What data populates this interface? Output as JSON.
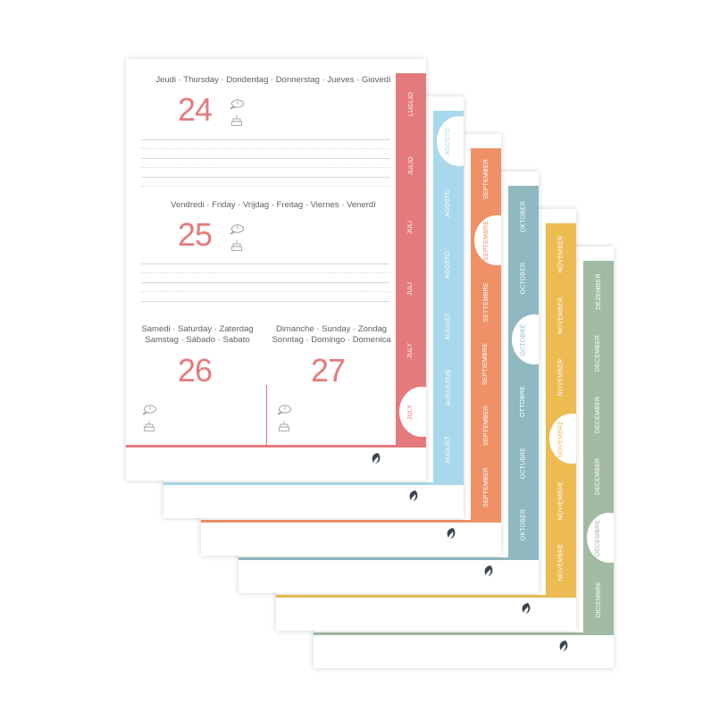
{
  "pages": [
    {
      "month": "July",
      "color": "#e57a7c",
      "highlight": 5,
      "labels": [
        "LUGLIO",
        "JULIO",
        "JULI",
        "JULI",
        "JULY",
        "JULY"
      ]
    },
    {
      "month": "August",
      "color": "#a8d8ec",
      "highlight": 0,
      "labels": [
        "AGOSTO",
        "AGOSTO",
        "AGOSTO",
        "AUGUST",
        "AUGUSTUS",
        "AUGUST"
      ]
    },
    {
      "month": "September",
      "color": "#ef9066",
      "highlight": 1,
      "labels": [
        "SEPTEMBER",
        "SEPTEMBRE",
        "SETTEMBRE",
        "SEPTIEMBRE",
        "SEPTEMBER",
        "SEPTEMBER"
      ]
    },
    {
      "month": "October",
      "color": "#8fb8c0",
      "highlight": 2,
      "labels": [
        "OKTOBER",
        "OCTOBER",
        "OCTOBRE",
        "OTTOBRE",
        "OCTUBRE",
        "OKTOBER"
      ]
    },
    {
      "month": "November",
      "color": "#ecbb52",
      "highlight": 3,
      "labels": [
        "NOVEMBER",
        "NOVEMBER",
        "NOVEMBER",
        "NOVEMBRE",
        "NOVIEMBRE",
        "NOVEMBRE"
      ]
    },
    {
      "month": "December",
      "color": "#a2b9a2",
      "highlight": 4,
      "labels": [
        "DEZEMBER",
        "DECEMBER",
        "DECEMBER",
        "DECEMBER",
        "DÉCEMBRE",
        "DICIEMBRE"
      ]
    }
  ],
  "top_page": {
    "days": [
      {
        "header": "Jeudi · Thursday · Donderdag · Donnerstag · Jueves · Giovedì",
        "number": "24"
      },
      {
        "header": "Vendredi · Friday · Vrijdag · Freitag · Viernes · Venerdì",
        "number": "25"
      },
      {
        "header_line1": "Samedi · Saturday · Zaterdag",
        "header_line2": "Samstag · Sábado · Sabato",
        "number": "26"
      },
      {
        "header_line1": "Dimanche · Sunday · Zondag",
        "header_line2": "Sonntag · Domingo · Domenica",
        "number": "27"
      }
    ]
  },
  "icons": [
    "speech-bubble-icon",
    "birthday-cake-icon",
    "brand-logo-icon"
  ]
}
